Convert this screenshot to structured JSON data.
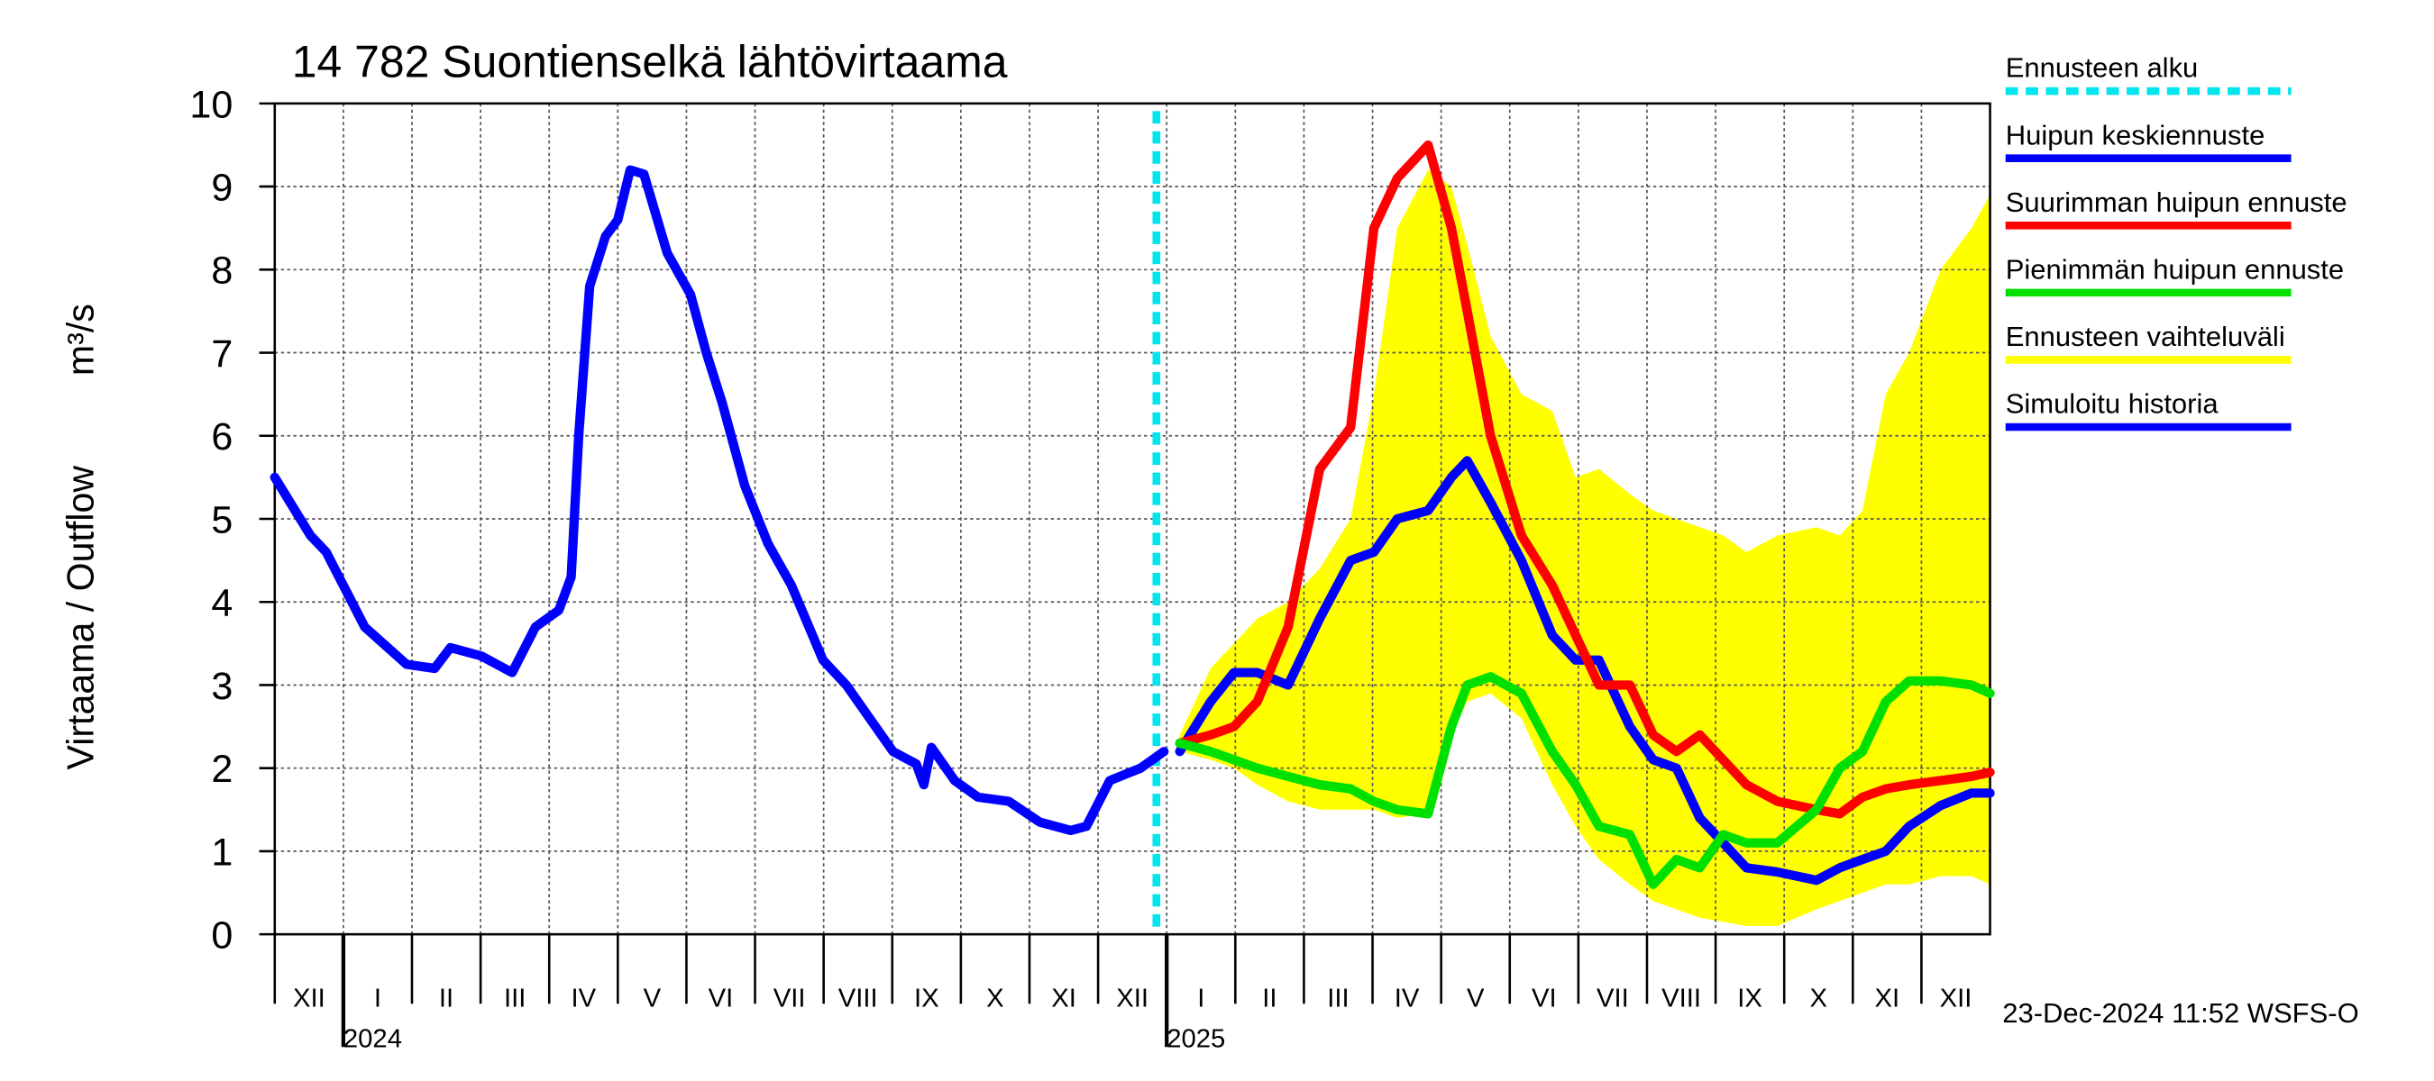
{
  "chart_data": {
    "type": "line",
    "title": "14 782 Suontienselkä lähtövirtaama",
    "y_label": "Virtaama / Outflow",
    "y_unit": "m³/s",
    "timestamp": "23-Dec-2024 11:52 WSFS-O",
    "grid": true,
    "legend": "right",
    "xlim": [
      0,
      25
    ],
    "xticks": [
      {
        "value": 0,
        "label": "XII"
      },
      {
        "value": 1,
        "label": "I"
      },
      {
        "value": 2,
        "label": "II"
      },
      {
        "value": 3,
        "label": "III"
      },
      {
        "value": 4,
        "label": "IV"
      },
      {
        "value": 5,
        "label": "V"
      },
      {
        "value": 6,
        "label": "VI"
      },
      {
        "value": 7,
        "label": "VII"
      },
      {
        "value": 8,
        "label": "VIII"
      },
      {
        "value": 9,
        "label": "IX"
      },
      {
        "value": 10,
        "label": "X"
      },
      {
        "value": 11,
        "label": "XI"
      },
      {
        "value": 12,
        "label": "XII"
      },
      {
        "value": 13,
        "label": "I"
      },
      {
        "value": 14,
        "label": "II"
      },
      {
        "value": 15,
        "label": "III"
      },
      {
        "value": 16,
        "label": "IV"
      },
      {
        "value": 17,
        "label": "V"
      },
      {
        "value": 18,
        "label": "VI"
      },
      {
        "value": 19,
        "label": "VII"
      },
      {
        "value": 20,
        "label": "VIII"
      },
      {
        "value": 21,
        "label": "IX"
      },
      {
        "value": 22,
        "label": "X"
      },
      {
        "value": 23,
        "label": "XI"
      },
      {
        "value": 24,
        "label": "XII"
      }
    ],
    "year_ticks": [
      {
        "value": 1,
        "label": "2024"
      },
      {
        "value": 13,
        "label": "2025"
      }
    ],
    "ylim": [
      0,
      10
    ],
    "yticks": [
      0,
      1,
      2,
      3,
      4,
      5,
      6,
      7,
      8,
      9,
      10
    ],
    "forecast_start": {
      "name": "Ennusteen alku",
      "color": "#00e5ee",
      "value": 12.85
    },
    "band": {
      "name": "Ennusteen vaihteluväli",
      "color": "#ffff00",
      "x": [
        13.19,
        13.64,
        13.98,
        14.32,
        14.77,
        15.23,
        15.68,
        16.02,
        16.36,
        16.81,
        17.15,
        17.38,
        17.72,
        18.17,
        18.62,
        18.96,
        19.3,
        19.75,
        20.09,
        20.43,
        20.77,
        21.11,
        21.45,
        21.9,
        22.47,
        22.81,
        23.14,
        23.48,
        23.82,
        24.28,
        24.73,
        25
      ],
      "upper": [
        2.4,
        3.2,
        3.5,
        3.8,
        4.0,
        4.4,
        5.0,
        6.5,
        8.5,
        9.2,
        9.0,
        8.3,
        7.2,
        6.5,
        6.3,
        5.5,
        5.6,
        5.3,
        5.1,
        5.0,
        4.9,
        4.8,
        4.6,
        4.8,
        4.9,
        4.8,
        5.1,
        6.5,
        7.0,
        8.0,
        8.5,
        8.9
      ],
      "lower": [
        2.2,
        2.1,
        2.0,
        1.8,
        1.6,
        1.5,
        1.5,
        1.5,
        1.4,
        1.45,
        2.4,
        2.8,
        2.9,
        2.6,
        1.8,
        1.3,
        0.9,
        0.6,
        0.4,
        0.3,
        0.2,
        0.15,
        0.1,
        0.1,
        0.3,
        0.4,
        0.5,
        0.6,
        0.6,
        0.7,
        0.7,
        0.6
      ]
    },
    "series": [
      {
        "name": "Huipun keskiennuste",
        "color": "#0000ff",
        "x": [
          13.19,
          13.64,
          13.98,
          14.32,
          14.77,
          15.23,
          15.68,
          16.02,
          16.36,
          16.81,
          17.15,
          17.38,
          17.72,
          18.17,
          18.62,
          18.96,
          19.3,
          19.75,
          20.09,
          20.43,
          20.77,
          21.11,
          21.45,
          21.9,
          22.47,
          22.81,
          23.14,
          23.48,
          23.82,
          24.28,
          24.73,
          25
        ],
        "values": [
          2.2,
          2.8,
          3.15,
          3.15,
          3.0,
          3.8,
          4.5,
          4.6,
          5.0,
          5.1,
          5.5,
          5.7,
          5.2,
          4.5,
          3.6,
          3.3,
          3.3,
          2.5,
          2.1,
          2.0,
          1.4,
          1.1,
          0.8,
          0.75,
          0.65,
          0.8,
          0.9,
          1.0,
          1.3,
          1.55,
          1.7,
          1.7
        ]
      },
      {
        "name": "Suurimman huipun ennuste",
        "color": "#ff0000",
        "x": [
          13.19,
          13.64,
          13.98,
          14.32,
          14.77,
          15.23,
          15.68,
          16.02,
          16.36,
          16.81,
          17.15,
          17.38,
          17.72,
          18.17,
          18.62,
          18.96,
          19.3,
          19.75,
          20.09,
          20.43,
          20.77,
          21.11,
          21.45,
          21.9,
          22.47,
          22.81,
          23.14,
          23.48,
          23.82,
          24.28,
          24.73,
          25
        ],
        "values": [
          2.3,
          2.4,
          2.5,
          2.8,
          3.7,
          5.6,
          6.1,
          8.5,
          9.1,
          9.5,
          8.5,
          7.5,
          6.0,
          4.8,
          4.2,
          3.6,
          3.0,
          3.0,
          2.4,
          2.2,
          2.4,
          2.1,
          1.8,
          1.6,
          1.5,
          1.45,
          1.65,
          1.75,
          1.8,
          1.85,
          1.9,
          1.95
        ]
      },
      {
        "name": "Pienimmän huipun ennuste",
        "color": "#00e000",
        "x": [
          13.19,
          13.64,
          13.98,
          14.32,
          14.77,
          15.23,
          15.68,
          16.02,
          16.36,
          16.81,
          17.15,
          17.38,
          17.72,
          18.17,
          18.62,
          18.96,
          19.3,
          19.75,
          20.09,
          20.43,
          20.77,
          21.11,
          21.45,
          21.9,
          22.47,
          22.81,
          23.14,
          23.48,
          23.82,
          24.28,
          24.73,
          25
        ],
        "values": [
          2.3,
          2.2,
          2.1,
          2.0,
          1.9,
          1.8,
          1.75,
          1.6,
          1.5,
          1.45,
          2.5,
          3.0,
          3.1,
          2.9,
          2.2,
          1.8,
          1.3,
          1.2,
          0.6,
          0.9,
          0.8,
          1.2,
          1.1,
          1.1,
          1.5,
          2.0,
          2.2,
          2.8,
          3.05,
          3.05,
          3.0,
          2.9
        ]
      },
      {
        "name": "Simuloitu historia",
        "color": "#0000ff",
        "x": [
          0,
          0.52,
          0.75,
          1.31,
          1.92,
          2.33,
          2.56,
          3.01,
          3.46,
          3.8,
          4.14,
          4.32,
          4.43,
          4.59,
          4.82,
          5.0,
          5.18,
          5.38,
          5.72,
          6.06,
          6.29,
          6.52,
          6.85,
          7.19,
          7.53,
          7.99,
          8.33,
          8.67,
          9.01,
          9.35,
          9.46,
          9.57,
          9.91,
          10.25,
          10.7,
          11.15,
          11.6,
          11.83,
          12.17,
          12.62,
          12.96
        ],
        "values": [
          5.5,
          4.8,
          4.6,
          3.7,
          3.25,
          3.2,
          3.45,
          3.35,
          3.15,
          3.7,
          3.9,
          4.3,
          6.0,
          7.8,
          8.4,
          8.6,
          9.2,
          9.15,
          8.2,
          7.7,
          7.0,
          6.4,
          5.4,
          4.7,
          4.2,
          3.3,
          3.0,
          2.6,
          2.2,
          2.05,
          1.8,
          2.25,
          1.85,
          1.65,
          1.6,
          1.35,
          1.25,
          1.3,
          1.85,
          2.0,
          2.2
        ]
      }
    ]
  }
}
